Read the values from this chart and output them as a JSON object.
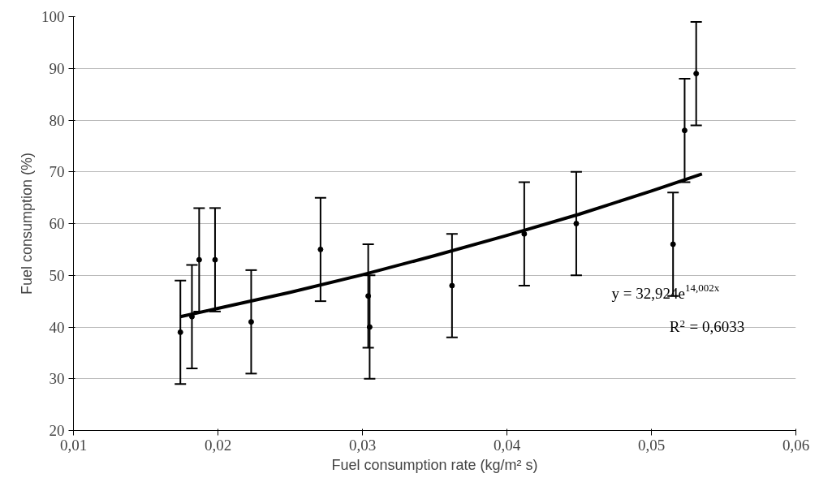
{
  "chart_data": {
    "type": "scatter",
    "xlabel": "Fuel consumption rate (kg/m² s)",
    "ylabel": "Fuel consumption (%)",
    "xlim": [
      0.01,
      0.06
    ],
    "xticks": [
      {
        "value": 0.01,
        "label": "0,01"
      },
      {
        "value": 0.02,
        "label": "0,02"
      },
      {
        "value": 0.03,
        "label": "0,03"
      },
      {
        "value": 0.04,
        "label": "0,04"
      },
      {
        "value": 0.05,
        "label": "0,05"
      },
      {
        "value": 0.06,
        "label": "0,06"
      }
    ],
    "ylim": [
      20,
      100
    ],
    "yticks": [
      20,
      30,
      40,
      50,
      60,
      70,
      80,
      90,
      100
    ],
    "grid": "y",
    "marker": "circle",
    "series": [
      {
        "color": "#000000",
        "x": [
          0.0174,
          0.0182,
          0.0187,
          0.0198,
          0.0223,
          0.0271,
          0.0304,
          0.0305,
          0.0362,
          0.0412,
          0.0448,
          0.0515,
          0.0523,
          0.0531
        ],
        "values": [
          39,
          42,
          53,
          53,
          41,
          55,
          46,
          40,
          48,
          58,
          60,
          56,
          78,
          89
        ],
        "errors": [
          10,
          10,
          10,
          10,
          10,
          10,
          10,
          10,
          10,
          10,
          10,
          10,
          10,
          10
        ]
      },
      {
        "type": "line",
        "color": "#000000",
        "marker": "none",
        "line_style": "solid",
        "x": [
          0.0174,
          0.02,
          0.025,
          0.03,
          0.035,
          0.04,
          0.045,
          0.05,
          0.0535
        ],
        "values": [
          42.0,
          43.6,
          46.7,
          50.1,
          53.8,
          57.7,
          61.8,
          66.3,
          69.6
        ]
      }
    ],
    "annotations": [
      "y = 32,924e$^{14,002x}$",
      "R$^{2}$ = 0,6033"
    ]
  }
}
